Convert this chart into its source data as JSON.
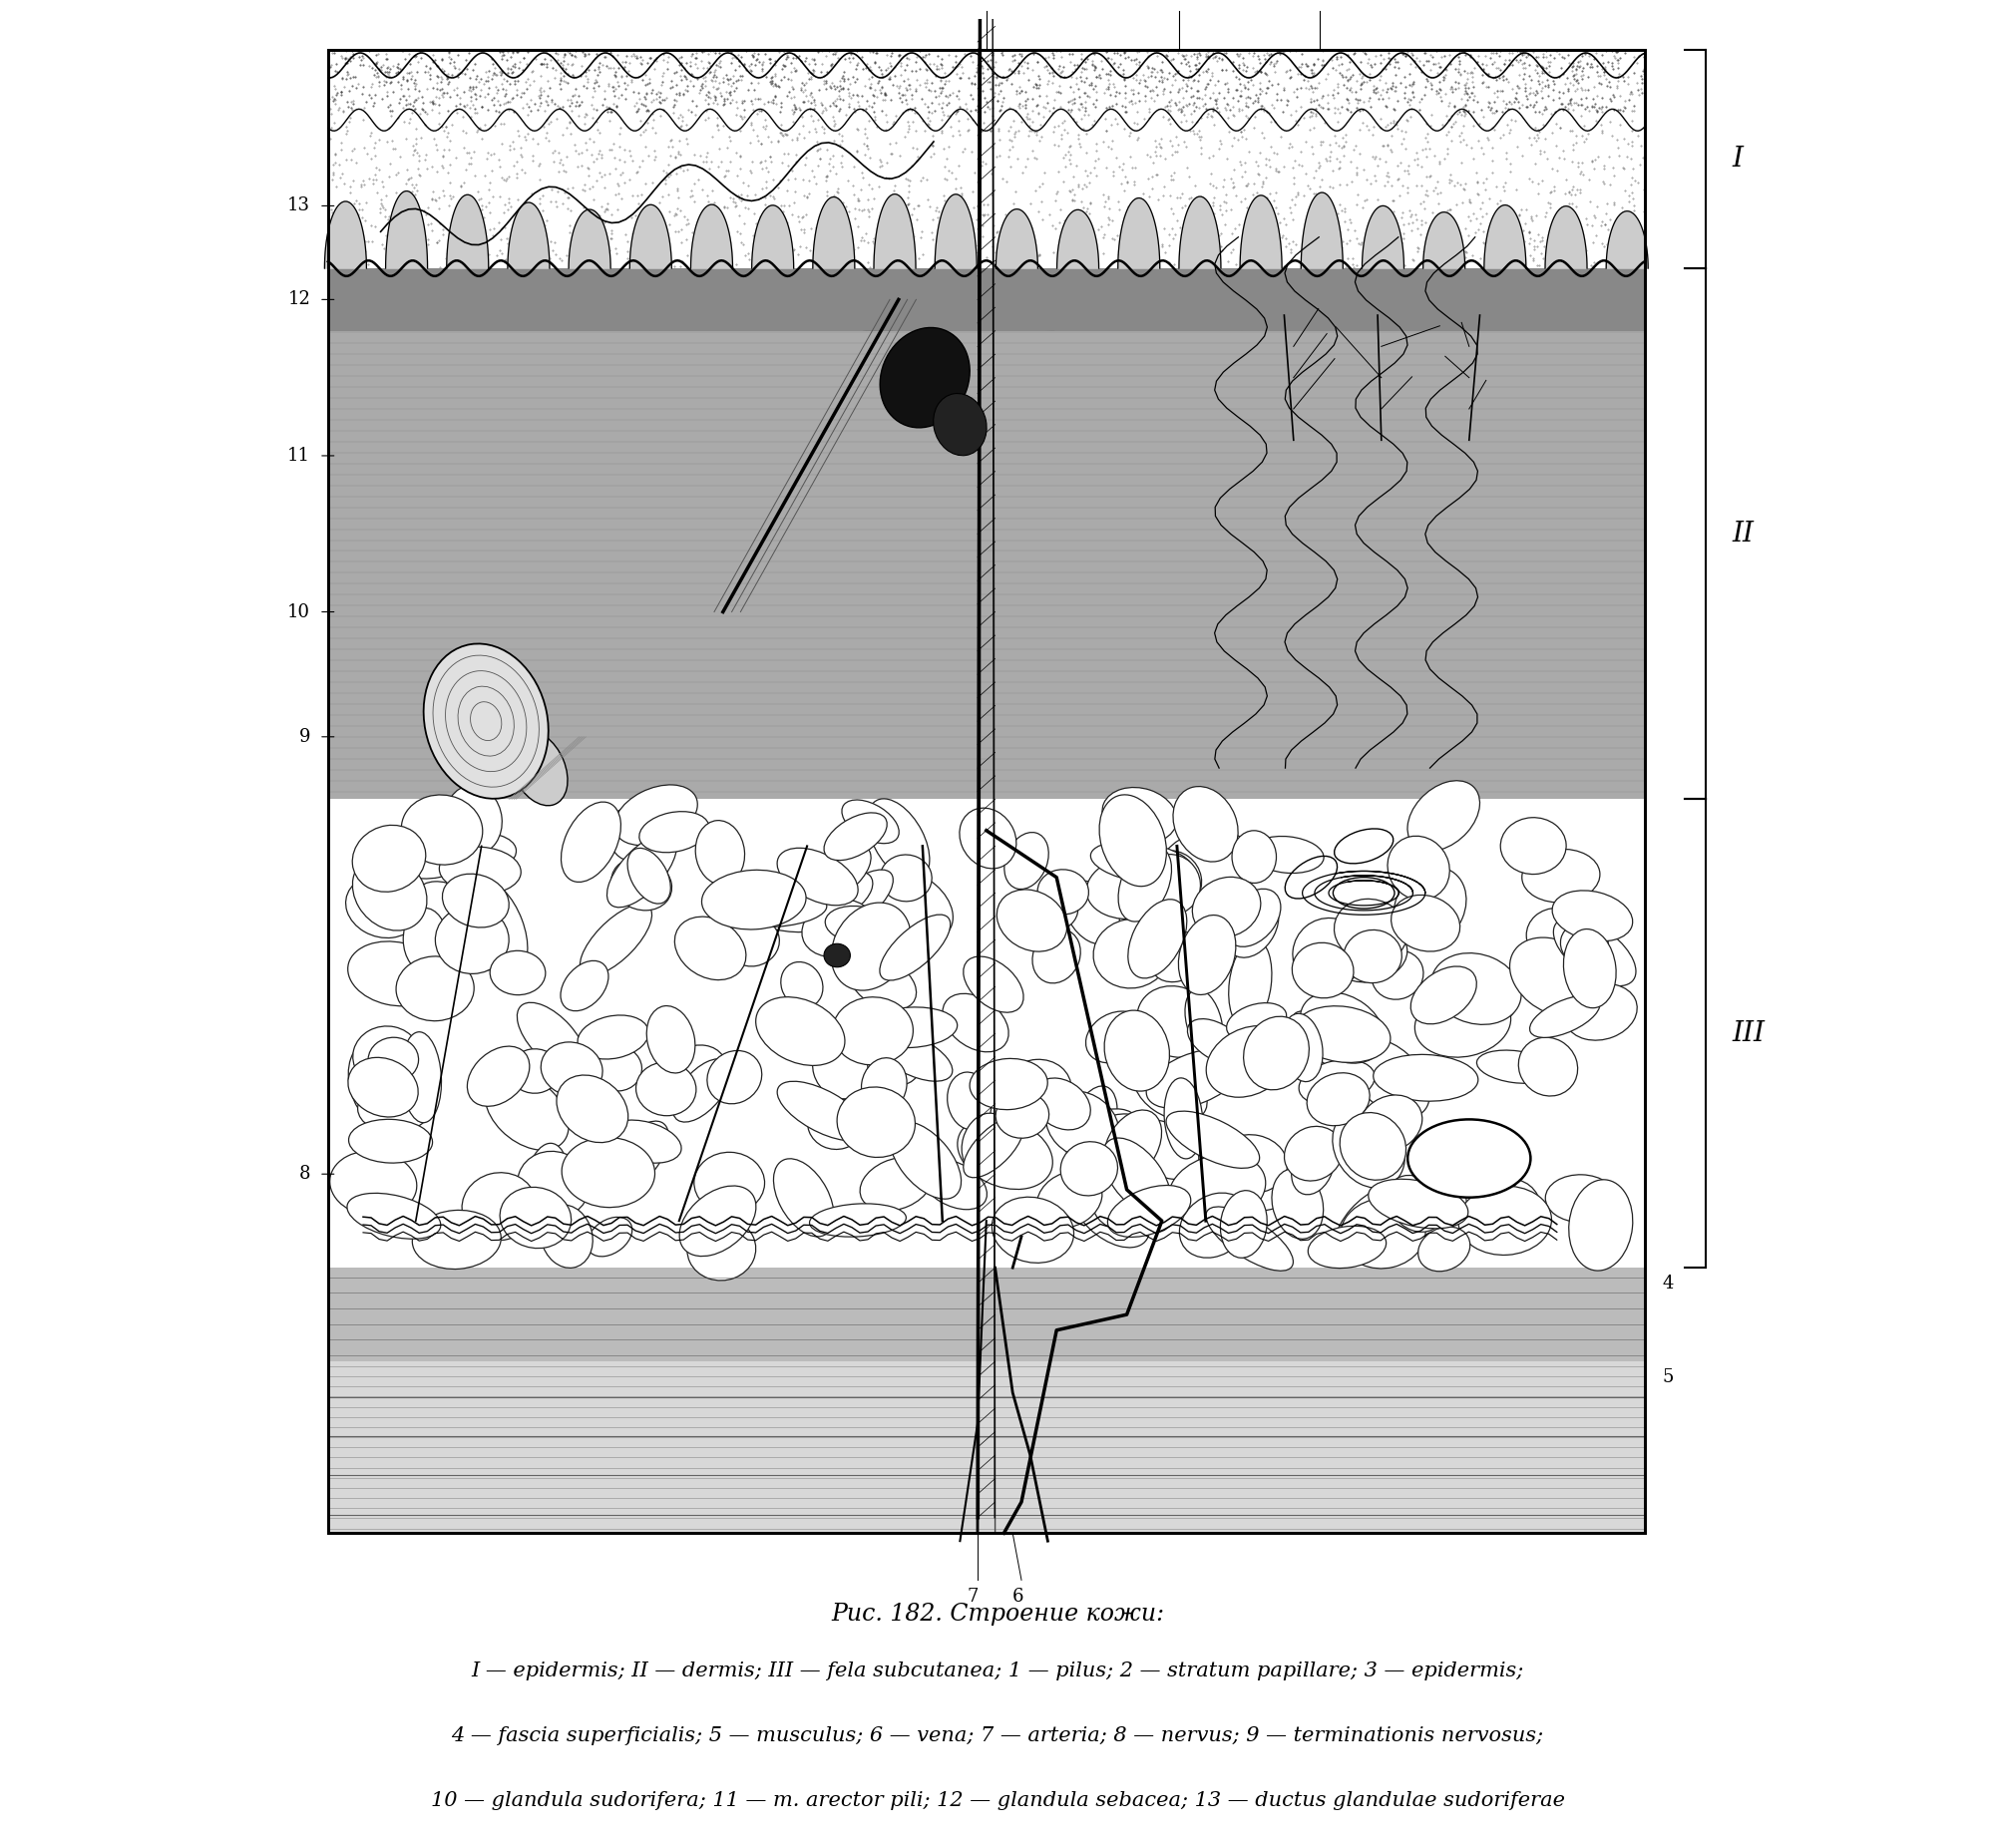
{
  "figure_title": "Рис. 182. Строение кожи:",
  "caption_line1": "I — epidermis; II — dermis; III — fela subcutanea; 1 — pilus; 2 — stratum papillare; 3 — epidermis;",
  "caption_line2": "4 — fascia superficialis; 5 — musculus; 6 — vena; 7 — arteria; 8 — nervus; 9 — terminationis nervosus;",
  "caption_line3": "10 — glandula sudorifera; 11 — m. arector pili; 12 — glandula sebacea; 13 — ductus glandulae sudoriferae",
  "bg_color": "#ffffff",
  "fig_width": 20.0,
  "fig_height": 18.53,
  "title_fontsize": 17,
  "caption_fontsize": 15
}
